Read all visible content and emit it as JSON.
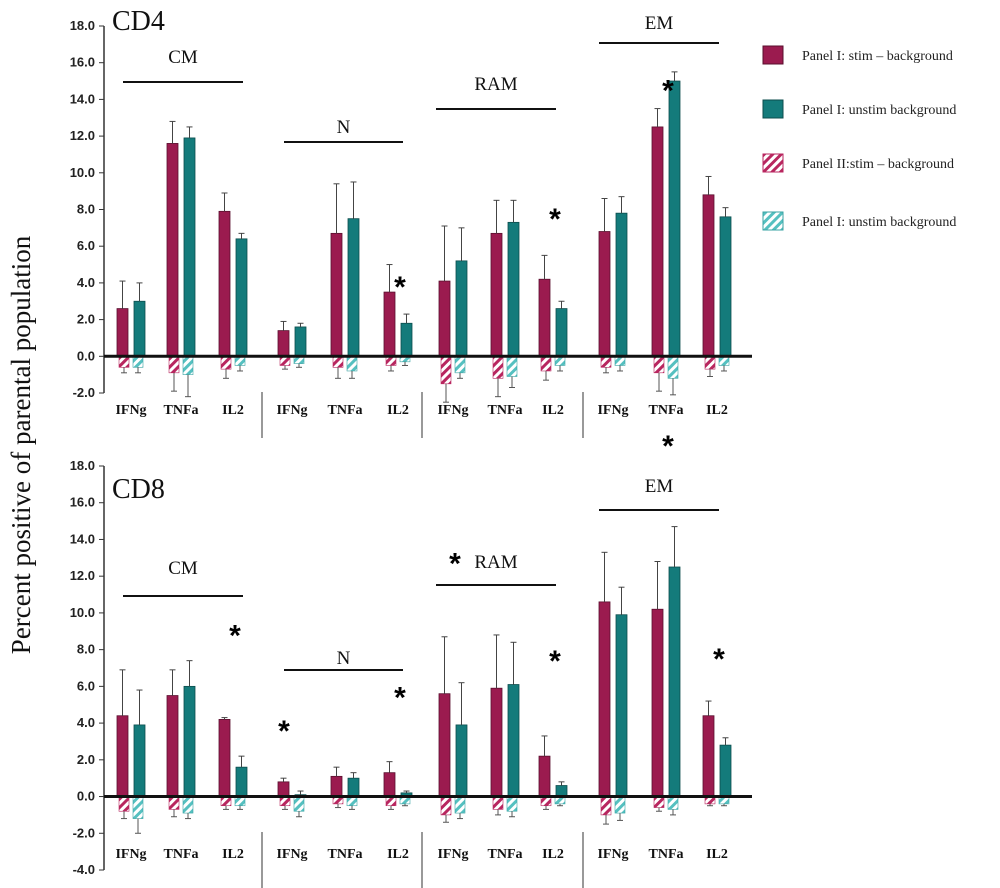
{
  "ylabel": "Percent positive of parental population",
  "legend": [
    "Panel I: stim – background",
    "Panel I: unstim background",
    "Panel II:stim – background",
    "Panel I: unstim background"
  ],
  "colors": {
    "panel1": "#9b1b4f",
    "panel2": "#147b7b",
    "panel1_hatch": "#b8265f",
    "panel2_hatch": "#55c0c0"
  },
  "chart_data": [
    {
      "type": "bar",
      "title": "CD4",
      "ylim": [
        -2,
        18
      ],
      "yticks": [
        "18.0",
        "16.0",
        "14.0",
        "12.0",
        "10.0",
        "8.0",
        "6.0",
        "4.0",
        "2.0",
        "0.0",
        "-2.0"
      ],
      "groups": [
        "CM",
        "N",
        "RAM",
        "EM"
      ],
      "categories": [
        "IFNg",
        "TNFa",
        "IL2"
      ],
      "series": [
        {
          "name": "Panel I: stim – background",
          "values": [
            [
              2.6,
              11.6,
              7.9
            ],
            [
              1.4,
              6.7,
              3.5
            ],
            [
              4.1,
              6.7,
              4.2
            ],
            [
              6.8,
              12.5,
              8.8
            ]
          ],
          "errors": [
            [
              1.5,
              1.2,
              1.0
            ],
            [
              0.5,
              2.7,
              1.5
            ],
            [
              3.0,
              1.8,
              1.3
            ],
            [
              1.8,
              1.0,
              1.0
            ]
          ]
        },
        {
          "name": "Panel II:stim – background",
          "values": [
            [
              3.0,
              11.9,
              6.4
            ],
            [
              1.6,
              7.5,
              1.8
            ],
            [
              5.2,
              7.3,
              2.6
            ],
            [
              7.8,
              15.0,
              7.6
            ]
          ],
          "errors": [
            [
              1.0,
              0.6,
              0.3
            ],
            [
              0.2,
              2.0,
              0.5
            ],
            [
              1.8,
              1.2,
              0.4
            ],
            [
              0.9,
              0.5,
              0.5
            ]
          ]
        },
        {
          "name": "Panel I: unstim background",
          "values": [
            [
              -0.6,
              -0.9,
              -0.7
            ],
            [
              -0.5,
              -0.6,
              -0.5
            ],
            [
              -1.5,
              -1.2,
              -0.8
            ],
            [
              -0.6,
              -0.9,
              -0.7
            ]
          ],
          "errors": [
            [
              0.3,
              1.0,
              0.5
            ],
            [
              0.2,
              0.6,
              0.3
            ],
            [
              1.0,
              1.0,
              0.5
            ],
            [
              0.3,
              1.0,
              0.4
            ]
          ]
        },
        {
          "name": "Panel I: unstim background",
          "values": [
            [
              -0.6,
              -1.0,
              -0.5
            ],
            [
              -0.4,
              -0.8,
              -0.3
            ],
            [
              -0.9,
              -1.1,
              -0.5
            ],
            [
              -0.5,
              -1.2,
              -0.5
            ]
          ],
          "errors": [
            [
              0.3,
              1.2,
              0.3
            ],
            [
              0.2,
              0.4,
              0.2
            ],
            [
              0.3,
              0.6,
              0.3
            ],
            [
              0.3,
              0.9,
              0.3
            ]
          ]
        }
      ],
      "stars": [
        {
          "group": "N",
          "category": "IL2",
          "y": 4.0
        },
        {
          "group": "RAM",
          "category": "IL2",
          "y": 7.7
        },
        {
          "group": "EM",
          "category": "TNFa",
          "y": 14.7
        }
      ]
    },
    {
      "type": "bar",
      "title": "CD8",
      "ylim": [
        -4,
        18
      ],
      "yticks": [
        "18.0",
        "16.0",
        "14.0",
        "12.0",
        "10.0",
        "8.0",
        "6.0",
        "4.0",
        "2.0",
        "0.0",
        "-2.0",
        "-4.0"
      ],
      "groups": [
        "CM",
        "N",
        "RAM",
        "EM"
      ],
      "categories": [
        "IFNg",
        "TNFa",
        "IL2"
      ],
      "series": [
        {
          "name": "Panel I: stim – background",
          "values": [
            [
              4.4,
              5.5,
              4.2
            ],
            [
              0.8,
              1.1,
              1.3
            ],
            [
              5.6,
              5.9,
              2.2
            ],
            [
              10.6,
              10.2,
              4.4
            ]
          ],
          "errors": [
            [
              2.5,
              1.4,
              0.1
            ],
            [
              0.2,
              0.5,
              0.6
            ],
            [
              3.1,
              2.9,
              1.1
            ],
            [
              2.7,
              2.6,
              0.8
            ]
          ]
        },
        {
          "name": "Panel II:stim – background",
          "values": [
            [
              3.9,
              6.0,
              1.6
            ],
            [
              0.1,
              1.0,
              0.2
            ],
            [
              3.9,
              6.1,
              0.6
            ],
            [
              9.9,
              12.5,
              2.8
            ]
          ],
          "errors": [
            [
              1.9,
              1.4,
              0.6
            ],
            [
              0.2,
              0.3,
              0.1
            ],
            [
              2.3,
              2.3,
              0.2
            ],
            [
              1.5,
              2.2,
              0.4
            ]
          ]
        },
        {
          "name": "Panel I: unstim background",
          "values": [
            [
              -0.8,
              -0.7,
              -0.5
            ],
            [
              -0.5,
              -0.4,
              -0.5
            ],
            [
              -1.0,
              -0.7,
              -0.5
            ],
            [
              -1.0,
              -0.6,
              -0.4
            ]
          ],
          "errors": [
            [
              0.4,
              0.4,
              0.2
            ],
            [
              0.2,
              0.2,
              0.2
            ],
            [
              0.4,
              0.3,
              0.2
            ],
            [
              0.5,
              0.2,
              0.1
            ]
          ]
        },
        {
          "name": "Panel I: unstim background",
          "values": [
            [
              -1.2,
              -0.9,
              -0.5
            ],
            [
              -0.8,
              -0.5,
              -0.4
            ],
            [
              -0.9,
              -0.8,
              -0.4
            ],
            [
              -0.9,
              -0.7,
              -0.4
            ]
          ],
          "errors": [
            [
              0.8,
              0.3,
              0.2
            ],
            [
              0.3,
              0.2,
              0.1
            ],
            [
              0.3,
              0.3,
              0.1
            ],
            [
              0.4,
              0.3,
              0.1
            ]
          ]
        }
      ],
      "stars": [
        {
          "group": "CM",
          "category": "IL2",
          "y": 9.0
        },
        {
          "group": "N",
          "category": "IFNg",
          "y": 3.8
        },
        {
          "group": "N",
          "category": "IL2",
          "y": 5.6
        },
        {
          "group": "RAM",
          "category": "IFNg",
          "y": 12.9
        },
        {
          "group": "RAM",
          "category": "IL2",
          "y": 7.6
        },
        {
          "group": "EM",
          "category": "TNFa",
          "y": 19.3
        },
        {
          "group": "EM",
          "category": "IL2",
          "y": 7.7
        }
      ]
    }
  ]
}
